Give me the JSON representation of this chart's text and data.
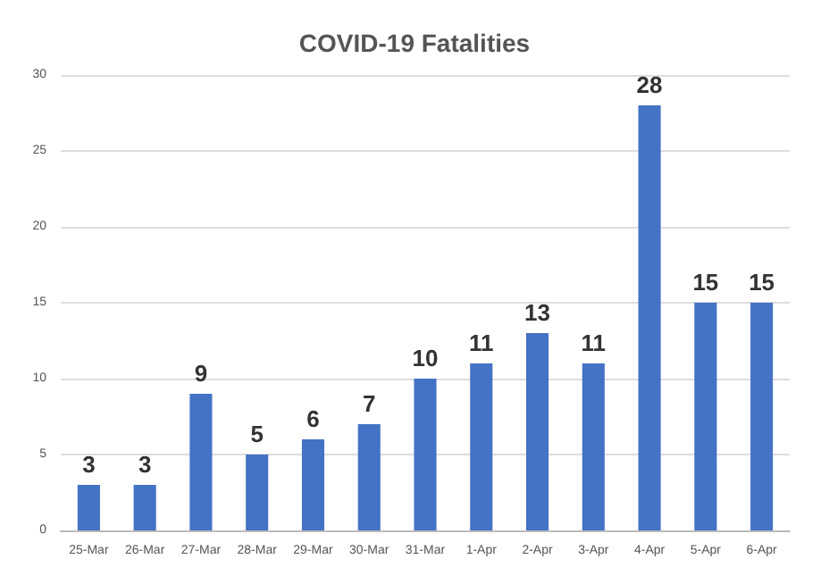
{
  "chart_data": {
    "type": "bar",
    "title": "COVID-19 Fatalities",
    "categories": [
      "25-Mar",
      "26-Mar",
      "27-Mar",
      "28-Mar",
      "29-Mar",
      "30-Mar",
      "31-Mar",
      "1-Apr",
      "2-Apr",
      "3-Apr",
      "4-Apr",
      "5-Apr",
      "6-Apr"
    ],
    "values": [
      3,
      3,
      9,
      5,
      6,
      7,
      10,
      11,
      13,
      11,
      28,
      15,
      15
    ],
    "color": "#4472c4",
    "ylim": [
      0,
      30
    ],
    "yticks": [
      0,
      5,
      10,
      15,
      20,
      25,
      30
    ],
    "grid": "y",
    "data_labels": true
  }
}
